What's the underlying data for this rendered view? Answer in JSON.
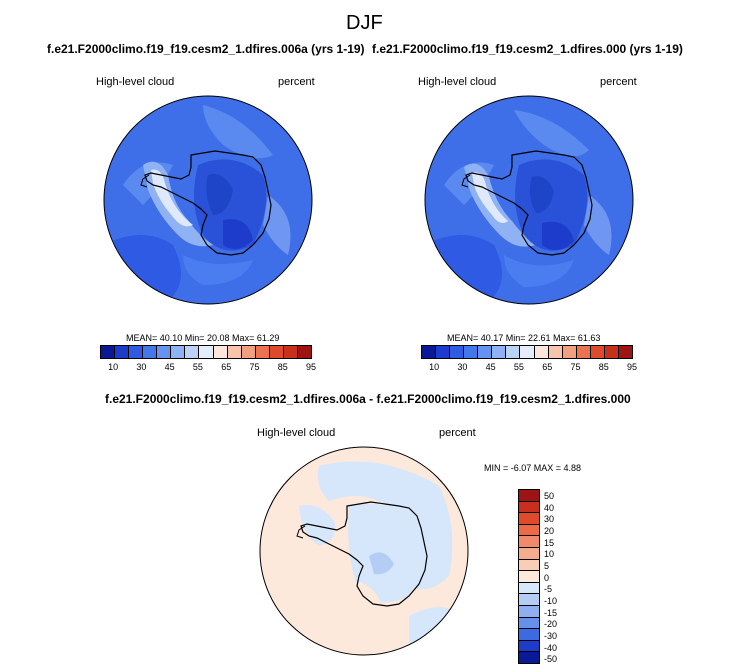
{
  "page": {
    "title": "DJF"
  },
  "panels": [
    {
      "subtitle": "f.e21.F2000climo.f19_f19.cesm2_1.dfires.006a (yrs 1-19)",
      "left_label": "High-level cloud",
      "right_label": "percent",
      "stats": "MEAN= 40.10  Min= 20.08  Max= 61.29"
    },
    {
      "subtitle": "f.e21.F2000climo.f19_f19.cesm2_1.dfires.000 (yrs 1-19)",
      "left_label": "High-level cloud",
      "right_label": "percent",
      "stats": "MEAN= 40.17  Min= 22.61  Max= 61.63"
    }
  ],
  "diff": {
    "subtitle": "f.e21.F2000climo.f19_f19.cesm2_1.dfires.006a - f.e21.F2000climo.f19_f19.cesm2_1.dfires.000",
    "left_label": "High-level cloud",
    "right_label": "percent",
    "stats": "MIN = -6.07 MAX =   4.88"
  },
  "colorbar_main": {
    "ticks": [
      "10",
      "30",
      "45",
      "55",
      "65",
      "75",
      "85",
      "95"
    ],
    "colors": [
      "#0a1a96",
      "#1e3ccc",
      "#2e5ae4",
      "#4676ec",
      "#6692f0",
      "#8fb2f4",
      "#bcd3f8",
      "#e3edfc",
      "#fde7dc",
      "#f8c4ae",
      "#f29e80",
      "#ec7352",
      "#e04a2c",
      "#c8301e",
      "#9c1414"
    ]
  },
  "colorbar_diff": {
    "ticks": [
      "50",
      "40",
      "30",
      "20",
      "15",
      "10",
      "5",
      "0",
      "-5",
      "-10",
      "-15",
      "-20",
      "-30",
      "-40",
      "-50"
    ],
    "colors": [
      "#9c1414",
      "#c8301e",
      "#e04a2c",
      "#ec6a46",
      "#f08a68",
      "#f5ac8e",
      "#f9cdb6",
      "#fde9dc",
      "#d6e6fb",
      "#b5cdf5",
      "#8fb0f0",
      "#6690ea",
      "#3c6ae2",
      "#1e3ccc",
      "#0a1a96"
    ]
  }
}
